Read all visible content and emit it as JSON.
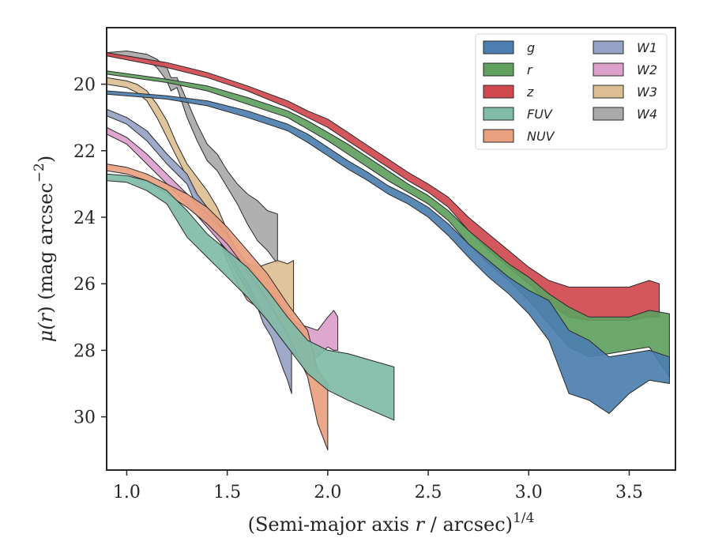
{
  "chart_data": {
    "type": "area",
    "xlabel": "(Semi-major axis r / arcsec)1/4",
    "xlabel_parts": {
      "pre": "(Semi-major axis ",
      "var": "r",
      "mid": " / arcsec)",
      "sup": "1/4"
    },
    "ylabel": "μ(r) (mag arcsec−2)",
    "ylabel_parts": {
      "mu": "μ(",
      "var": "r",
      "mid": ") (mag arcsec",
      "sup": "−2",
      "end": ")"
    },
    "xlim": [
      0.9,
      3.73
    ],
    "ylim": [
      31.6,
      18.3
    ],
    "y_inverted": true,
    "xticks": [
      {
        "v": 1.0,
        "label": "1.0"
      },
      {
        "v": 1.5,
        "label": "1.5"
      },
      {
        "v": 2.0,
        "label": "2.0"
      },
      {
        "v": 2.5,
        "label": "2.5"
      },
      {
        "v": 3.0,
        "label": "3.0"
      },
      {
        "v": 3.5,
        "label": "3.5"
      }
    ],
    "yticks": [
      {
        "v": 20,
        "label": "20"
      },
      {
        "v": 22,
        "label": "22"
      },
      {
        "v": 24,
        "label": "24"
      },
      {
        "v": 26,
        "label": "26"
      },
      {
        "v": 28,
        "label": "28"
      },
      {
        "v": 30,
        "label": "30"
      }
    ],
    "grid": false,
    "legend_placement": "top-right",
    "legend_columns": 2,
    "series": [
      {
        "name": "W4",
        "color": "#a9a9a9",
        "points": [
          [
            0.9,
            19.15,
            19.05
          ],
          [
            1.0,
            19.15,
            19.0
          ],
          [
            1.1,
            19.25,
            19.1
          ],
          [
            1.15,
            19.5,
            19.25
          ],
          [
            1.2,
            19.9,
            19.5
          ],
          [
            1.22,
            20.2,
            19.8
          ],
          [
            1.25,
            20.1,
            19.8
          ],
          [
            1.3,
            21.0,
            20.5
          ],
          [
            1.35,
            21.7,
            21.2
          ],
          [
            1.4,
            22.3,
            21.8
          ],
          [
            1.45,
            22.6,
            22.1
          ],
          [
            1.5,
            23.1,
            22.6
          ],
          [
            1.55,
            23.6,
            23.0
          ],
          [
            1.6,
            24.2,
            23.3
          ],
          [
            1.65,
            24.7,
            23.5
          ],
          [
            1.7,
            25.0,
            23.8
          ],
          [
            1.75,
            25.4,
            23.9
          ]
        ]
      },
      {
        "name": "W3",
        "color": "#ddbf94",
        "points": [
          [
            0.9,
            20.0,
            19.8
          ],
          [
            1.0,
            20.1,
            19.9
          ],
          [
            1.05,
            20.25,
            20.0
          ],
          [
            1.1,
            20.5,
            20.2
          ],
          [
            1.15,
            21.0,
            20.6
          ],
          [
            1.2,
            21.6,
            21.1
          ],
          [
            1.25,
            22.2,
            21.8
          ],
          [
            1.3,
            22.8,
            22.4
          ],
          [
            1.35,
            23.4,
            22.8
          ],
          [
            1.4,
            23.9,
            23.2
          ],
          [
            1.45,
            24.5,
            23.7
          ],
          [
            1.5,
            25.3,
            24.4
          ],
          [
            1.55,
            26.0,
            25.2
          ],
          [
            1.6,
            26.5,
            25.4
          ],
          [
            1.65,
            26.7,
            25.5
          ],
          [
            1.7,
            27.0,
            25.4
          ],
          [
            1.75,
            27.3,
            25.3
          ],
          [
            1.8,
            27.0,
            25.4
          ],
          [
            1.83,
            26.9,
            25.3
          ]
        ]
      },
      {
        "name": "W1",
        "color": "#97a3c6",
        "points": [
          [
            0.9,
            20.95,
            20.75
          ],
          [
            1.0,
            21.2,
            21.0
          ],
          [
            1.1,
            21.7,
            21.4
          ],
          [
            1.2,
            22.4,
            22.1
          ],
          [
            1.3,
            23.0,
            22.7
          ],
          [
            1.35,
            23.7,
            23.3
          ],
          [
            1.4,
            24.2,
            23.7
          ],
          [
            1.45,
            24.6,
            24.1
          ],
          [
            1.5,
            25.1,
            24.6
          ],
          [
            1.55,
            25.7,
            25.2
          ],
          [
            1.6,
            26.2,
            25.6
          ],
          [
            1.65,
            26.7,
            26.0
          ],
          [
            1.68,
            27.2,
            26.2
          ],
          [
            1.72,
            27.6,
            26.6
          ],
          [
            1.75,
            28.1,
            27.0
          ],
          [
            1.78,
            28.6,
            27.3
          ],
          [
            1.8,
            28.9,
            27.6
          ],
          [
            1.82,
            29.3,
            27.9
          ]
        ]
      },
      {
        "name": "W2",
        "color": "#dca0cb",
        "points": [
          [
            0.9,
            21.5,
            21.3
          ],
          [
            1.0,
            21.8,
            21.6
          ],
          [
            1.1,
            22.4,
            22.1
          ],
          [
            1.2,
            23.0,
            22.7
          ],
          [
            1.3,
            23.6,
            23.3
          ],
          [
            1.4,
            24.3,
            23.9
          ],
          [
            1.5,
            25.0,
            24.5
          ],
          [
            1.55,
            25.5,
            25.0
          ],
          [
            1.6,
            26.0,
            25.4
          ],
          [
            1.65,
            26.6,
            25.8
          ],
          [
            1.7,
            27.1,
            26.2
          ],
          [
            1.75,
            27.5,
            26.5
          ],
          [
            1.8,
            27.9,
            26.9
          ],
          [
            1.85,
            28.2,
            27.2
          ],
          [
            1.9,
            28.3,
            27.3
          ],
          [
            1.95,
            28.2,
            27.4
          ],
          [
            2.0,
            27.9,
            27.0
          ],
          [
            2.03,
            28.0,
            26.8
          ],
          [
            2.05,
            28.0,
            27.0
          ]
        ]
      },
      {
        "name": "NUV",
        "color": "#e9a07f",
        "points": [
          [
            0.9,
            22.6,
            22.4
          ],
          [
            1.0,
            22.7,
            22.5
          ],
          [
            1.1,
            22.9,
            22.7
          ],
          [
            1.2,
            23.3,
            23.0
          ],
          [
            1.3,
            23.7,
            23.3
          ],
          [
            1.4,
            24.2,
            23.7
          ],
          [
            1.5,
            24.8,
            24.3
          ],
          [
            1.6,
            25.6,
            25.0
          ],
          [
            1.7,
            26.5,
            25.7
          ],
          [
            1.8,
            27.5,
            26.6
          ],
          [
            1.9,
            28.8,
            27.4
          ],
          [
            1.95,
            30.2,
            28.6
          ],
          [
            2.0,
            31.0,
            29.0
          ]
        ]
      },
      {
        "name": "FUV",
        "color": "#7fbba7",
        "points": [
          [
            0.9,
            22.9,
            22.7
          ],
          [
            1.0,
            22.95,
            22.75
          ],
          [
            1.1,
            23.2,
            22.9
          ],
          [
            1.2,
            23.6,
            23.2
          ],
          [
            1.3,
            24.6,
            23.8
          ],
          [
            1.4,
            25.2,
            24.5
          ],
          [
            1.5,
            25.8,
            25.0
          ],
          [
            1.6,
            26.4,
            25.5
          ],
          [
            1.7,
            27.1,
            26.2
          ],
          [
            1.8,
            27.9,
            27.0
          ],
          [
            1.9,
            28.7,
            27.7
          ],
          [
            2.0,
            29.2,
            28.0
          ],
          [
            2.1,
            29.5,
            28.1
          ],
          [
            2.33,
            30.1,
            28.5
          ]
        ]
      },
      {
        "name": "z",
        "color": "#d0494f",
        "points": [
          [
            0.9,
            19.15,
            19.05
          ],
          [
            1.2,
            19.5,
            19.35
          ],
          [
            1.4,
            19.8,
            19.65
          ],
          [
            1.6,
            20.2,
            20.05
          ],
          [
            1.8,
            20.7,
            20.5
          ],
          [
            1.9,
            21.0,
            20.8
          ],
          [
            2.0,
            21.3,
            21.05
          ],
          [
            2.1,
            21.7,
            21.45
          ],
          [
            2.2,
            22.1,
            21.85
          ],
          [
            2.3,
            22.5,
            22.25
          ],
          [
            2.4,
            22.9,
            22.65
          ],
          [
            2.5,
            23.25,
            23.0
          ],
          [
            2.6,
            23.7,
            23.4
          ],
          [
            2.7,
            24.4,
            24.0
          ],
          [
            2.8,
            25.0,
            24.5
          ],
          [
            2.9,
            25.5,
            25.0
          ],
          [
            3.0,
            26.0,
            25.5
          ],
          [
            3.1,
            26.6,
            25.9
          ],
          [
            3.2,
            27.0,
            26.1
          ],
          [
            3.3,
            27.1,
            26.1
          ],
          [
            3.4,
            27.1,
            26.1
          ],
          [
            3.5,
            27.1,
            26.1
          ],
          [
            3.6,
            27.0,
            25.9
          ],
          [
            3.65,
            27.0,
            26.0
          ]
        ]
      },
      {
        "name": "r",
        "color": "#5fa05f",
        "points": [
          [
            0.9,
            19.7,
            19.6
          ],
          [
            1.2,
            19.95,
            19.85
          ],
          [
            1.4,
            20.2,
            20.05
          ],
          [
            1.6,
            20.6,
            20.4
          ],
          [
            1.8,
            21.0,
            20.8
          ],
          [
            1.9,
            21.35,
            21.1
          ],
          [
            2.0,
            21.7,
            21.45
          ],
          [
            2.1,
            22.1,
            21.8
          ],
          [
            2.2,
            22.5,
            22.2
          ],
          [
            2.3,
            22.9,
            22.6
          ],
          [
            2.4,
            23.25,
            23.0
          ],
          [
            2.5,
            23.6,
            23.35
          ],
          [
            2.6,
            24.1,
            23.8
          ],
          [
            2.7,
            24.8,
            24.4
          ],
          [
            2.8,
            25.4,
            24.9
          ],
          [
            2.9,
            25.9,
            25.4
          ],
          [
            3.0,
            26.5,
            25.8
          ],
          [
            3.1,
            27.2,
            26.3
          ],
          [
            3.2,
            27.9,
            26.7
          ],
          [
            3.3,
            28.2,
            27.0
          ],
          [
            3.4,
            28.1,
            27.0
          ],
          [
            3.5,
            28.0,
            27.0
          ],
          [
            3.6,
            27.9,
            26.8
          ],
          [
            3.7,
            28.8,
            26.9
          ]
        ]
      },
      {
        "name": "g",
        "color": "#4c7fb0",
        "points": [
          [
            0.9,
            20.3,
            20.2
          ],
          [
            1.2,
            20.45,
            20.35
          ],
          [
            1.4,
            20.65,
            20.5
          ],
          [
            1.6,
            21.0,
            20.8
          ],
          [
            1.8,
            21.4,
            21.2
          ],
          [
            1.9,
            21.75,
            21.5
          ],
          [
            2.0,
            22.15,
            21.9
          ],
          [
            2.1,
            22.55,
            22.3
          ],
          [
            2.2,
            22.9,
            22.65
          ],
          [
            2.3,
            23.3,
            23.05
          ],
          [
            2.4,
            23.6,
            23.35
          ],
          [
            2.5,
            24.0,
            23.7
          ],
          [
            2.6,
            24.55,
            24.2
          ],
          [
            2.7,
            25.2,
            24.8
          ],
          [
            2.8,
            25.8,
            25.3
          ],
          [
            2.9,
            26.3,
            25.8
          ],
          [
            3.0,
            26.9,
            26.2
          ],
          [
            3.1,
            27.7,
            26.5
          ],
          [
            3.2,
            29.3,
            27.4
          ],
          [
            3.3,
            29.5,
            27.7
          ],
          [
            3.4,
            29.9,
            28.2
          ],
          [
            3.5,
            29.3,
            28.1
          ],
          [
            3.6,
            28.9,
            28.0
          ],
          [
            3.7,
            29.0,
            28.2
          ]
        ]
      }
    ],
    "legend": [
      {
        "name": "g",
        "color": "#4c7fb0"
      },
      {
        "name": "r",
        "color": "#5fa05f"
      },
      {
        "name": "z",
        "color": "#d0494f"
      },
      {
        "name": "FUV",
        "color": "#7fbba7"
      },
      {
        "name": "NUV",
        "color": "#e9a07f"
      },
      {
        "name": "W1",
        "color": "#97a3c6"
      },
      {
        "name": "W2",
        "color": "#dca0cb"
      },
      {
        "name": "W3",
        "color": "#ddbf94"
      },
      {
        "name": "W4",
        "color": "#a9a9a9"
      }
    ]
  }
}
